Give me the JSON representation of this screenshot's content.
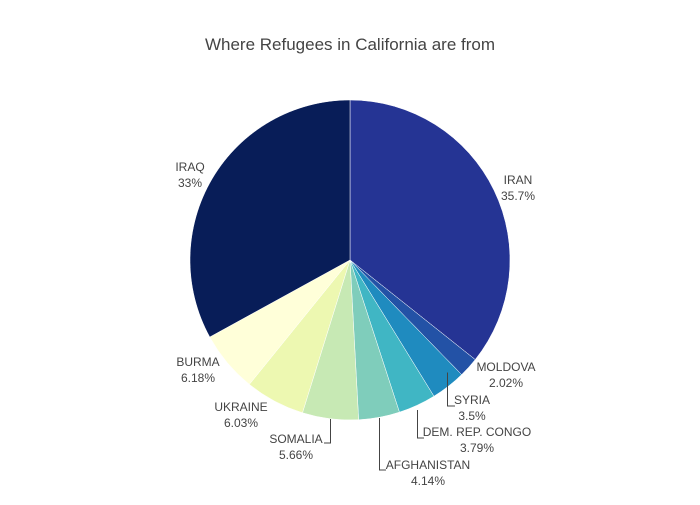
{
  "chart_data": {
    "type": "pie",
    "title": "Where Refugees in California are from",
    "slices": [
      {
        "label": "IRAN",
        "percent_text": "35.7%",
        "value": 35.7,
        "color": "#253494"
      },
      {
        "label": "MOLDOVA",
        "percent_text": "2.02%",
        "value": 2.02,
        "color": "#2352a6"
      },
      {
        "label": "SYRIA",
        "percent_text": "3.5%",
        "value": 3.5,
        "color": "#1f8bbf"
      },
      {
        "label": "DEM. REP. CONGO",
        "percent_text": "3.79%",
        "value": 3.79,
        "color": "#40b6c4"
      },
      {
        "label": "AFGHANISTAN",
        "percent_text": "4.14%",
        "value": 4.14,
        "color": "#7fcdbb"
      },
      {
        "label": "SOMALIA",
        "percent_text": "5.66%",
        "value": 5.66,
        "color": "#c7e9b4"
      },
      {
        "label": "UKRAINE",
        "percent_text": "6.03%",
        "value": 6.03,
        "color": "#edf8b1"
      },
      {
        "label": "BURMA",
        "percent_text": "6.18%",
        "value": 6.18,
        "color": "#ffffd9"
      },
      {
        "label": "IRAQ",
        "percent_text": "33%",
        "value": 33.0,
        "color": "#081d58"
      }
    ],
    "direction": "clockwise",
    "start": "top"
  }
}
